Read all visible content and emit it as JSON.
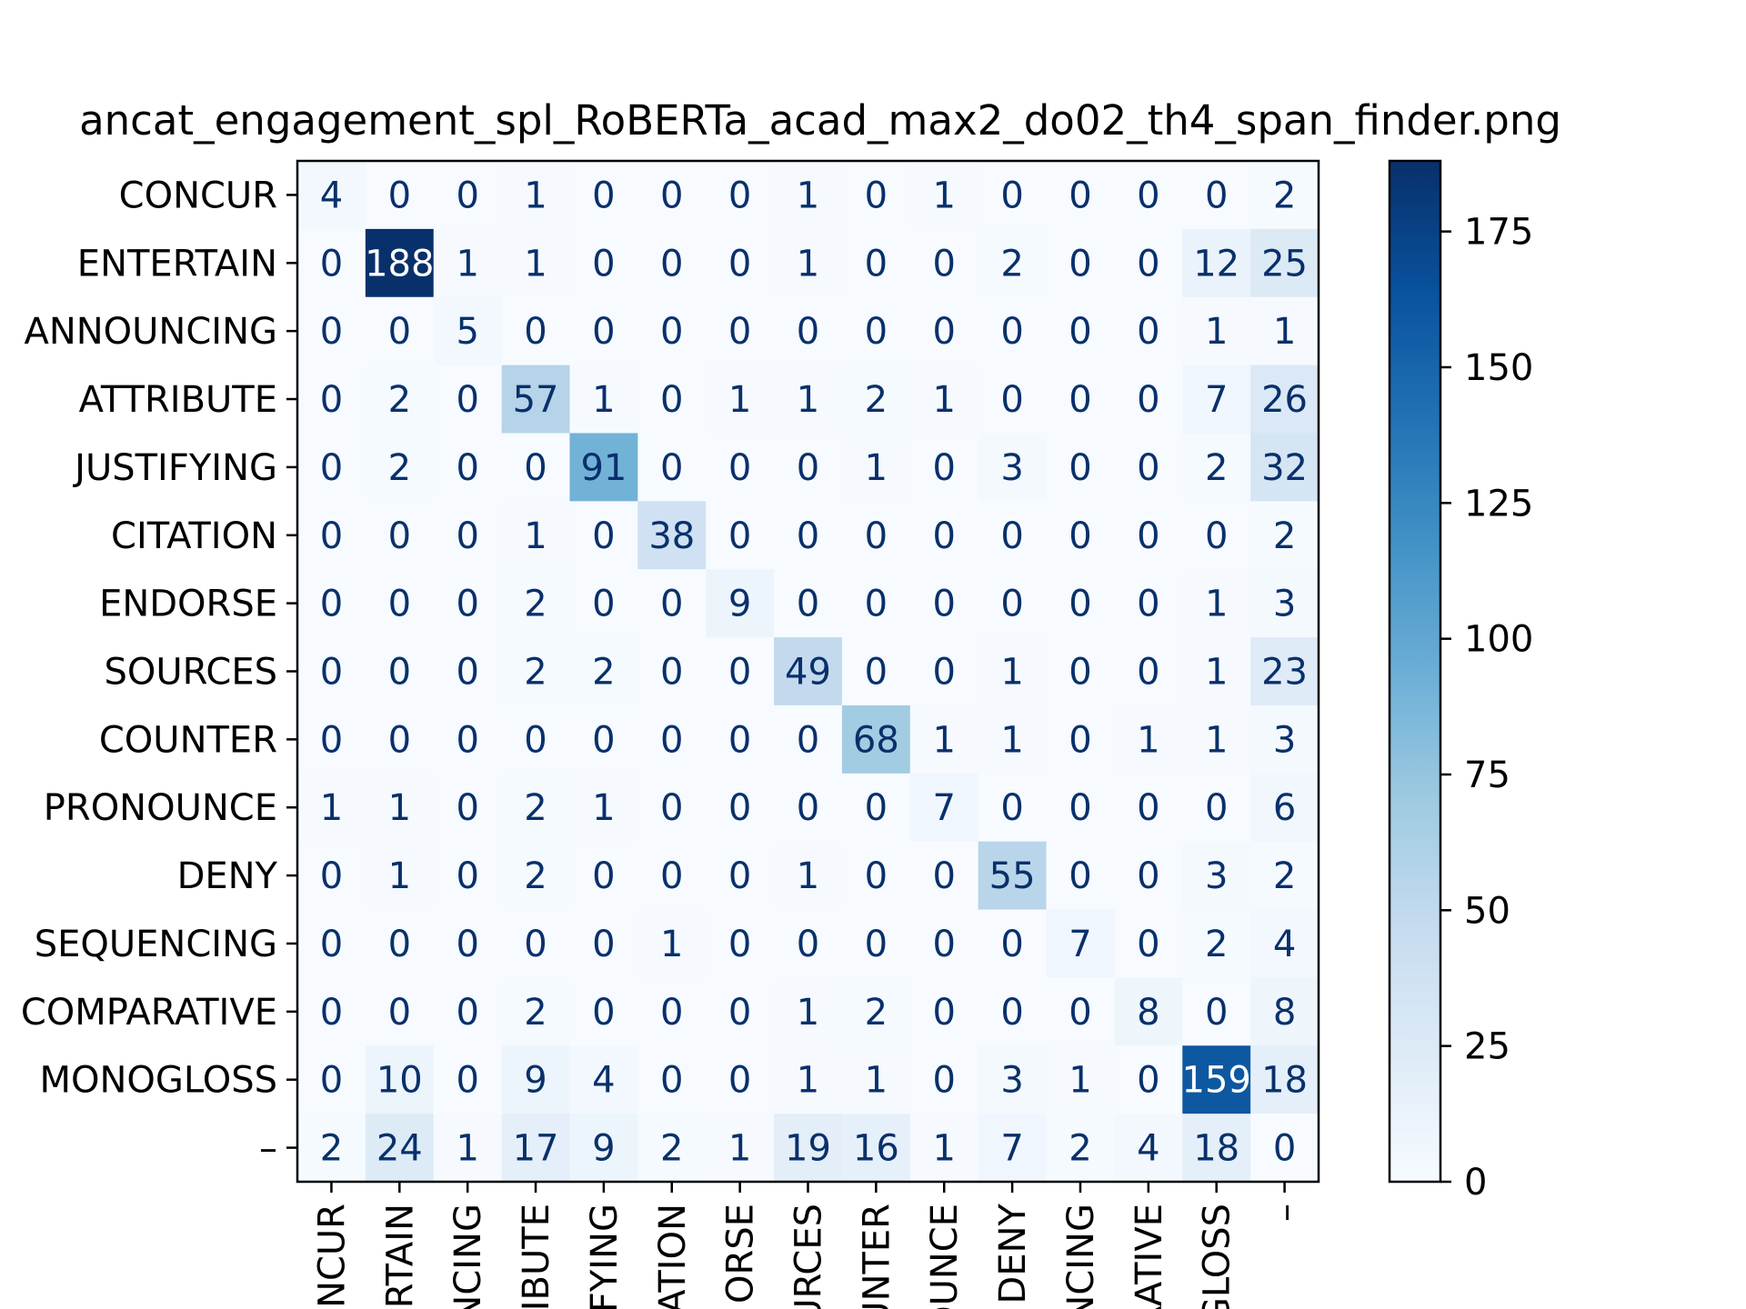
{
  "chart_data": {
    "type": "heatmap",
    "title": "ancat_engagement_spl_RoBERTa_acad_max2_do02_th4_span_finder.png",
    "xlabel": "",
    "ylabel": "",
    "row_labels": [
      "CONCUR",
      "ENTERTAIN",
      "ANNOUNCING",
      "ATTRIBUTE",
      "JUSTIFYING",
      "CITATION",
      "ENDORSE",
      "SOURCES",
      "COUNTER",
      "PRONOUNCE",
      "DENY",
      "SEQUENCING",
      "COMPARATIVE",
      "MONOGLOSS",
      "–"
    ],
    "col_labels": [
      "NCUR",
      "RTAIN",
      "NCING",
      "IBUTE",
      "IFYING",
      "ATION",
      "ORSE",
      "URCES",
      "UNTER",
      "OUNCE",
      "DENY",
      "NCING",
      "RATIVE",
      "GLOSS",
      "–"
    ],
    "values": [
      [
        4,
        0,
        0,
        1,
        0,
        0,
        0,
        1,
        0,
        1,
        0,
        0,
        0,
        0,
        2
      ],
      [
        0,
        188,
        1,
        1,
        0,
        0,
        0,
        1,
        0,
        0,
        2,
        0,
        0,
        12,
        25
      ],
      [
        0,
        0,
        5,
        0,
        0,
        0,
        0,
        0,
        0,
        0,
        0,
        0,
        0,
        1,
        1
      ],
      [
        0,
        2,
        0,
        57,
        1,
        0,
        1,
        1,
        2,
        1,
        0,
        0,
        0,
        7,
        26
      ],
      [
        0,
        2,
        0,
        0,
        91,
        0,
        0,
        0,
        1,
        0,
        3,
        0,
        0,
        2,
        32
      ],
      [
        0,
        0,
        0,
        1,
        0,
        38,
        0,
        0,
        0,
        0,
        0,
        0,
        0,
        0,
        2
      ],
      [
        0,
        0,
        0,
        2,
        0,
        0,
        9,
        0,
        0,
        0,
        0,
        0,
        0,
        1,
        3
      ],
      [
        0,
        0,
        0,
        2,
        2,
        0,
        0,
        49,
        0,
        0,
        1,
        0,
        0,
        1,
        23
      ],
      [
        0,
        0,
        0,
        0,
        0,
        0,
        0,
        0,
        68,
        1,
        1,
        0,
        1,
        1,
        3
      ],
      [
        1,
        1,
        0,
        2,
        1,
        0,
        0,
        0,
        0,
        7,
        0,
        0,
        0,
        0,
        6
      ],
      [
        0,
        1,
        0,
        2,
        0,
        0,
        0,
        1,
        0,
        0,
        55,
        0,
        0,
        3,
        2
      ],
      [
        0,
        0,
        0,
        0,
        0,
        1,
        0,
        0,
        0,
        0,
        0,
        7,
        0,
        2,
        4
      ],
      [
        0,
        0,
        0,
        2,
        0,
        0,
        0,
        1,
        2,
        0,
        0,
        0,
        8,
        0,
        8
      ],
      [
        0,
        10,
        0,
        9,
        4,
        0,
        0,
        1,
        1,
        0,
        3,
        1,
        0,
        159,
        18
      ],
      [
        2,
        24,
        1,
        17,
        9,
        2,
        1,
        19,
        16,
        1,
        7,
        2,
        4,
        18,
        0
      ]
    ],
    "vmin": 0,
    "vmax": 188,
    "colormap": "Blues",
    "colorbar_ticks": [
      0,
      25,
      50,
      75,
      100,
      125,
      150,
      175
    ],
    "colorbar_tick_labels": [
      "0",
      "25",
      "50",
      "75",
      "100",
      "125",
      "150",
      "175"
    ],
    "grid": false,
    "colors": {
      "blues_stops": [
        "#f7fbff",
        "#deebf7",
        "#c6dbef",
        "#9ecae1",
        "#6baed6",
        "#4292c6",
        "#2171b5",
        "#08519c",
        "#08306b"
      ],
      "text_dark": "#08306b",
      "text_light": "#ffffff",
      "axis": "#000000"
    }
  }
}
